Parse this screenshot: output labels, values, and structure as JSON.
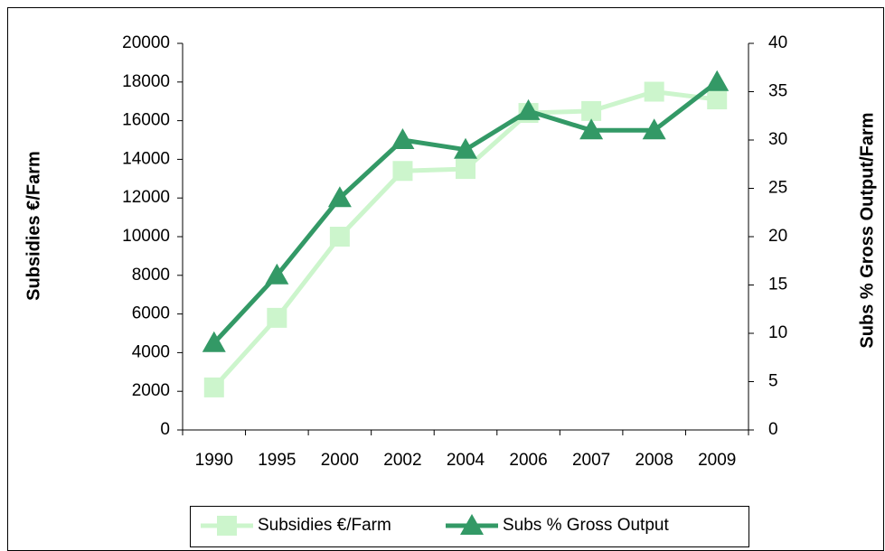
{
  "chart_data": {
    "type": "line",
    "categories": [
      "1990",
      "1995",
      "2000",
      "2002",
      "2004",
      "2006",
      "2007",
      "2008",
      "2009"
    ],
    "series": [
      {
        "name": "Subsidies €/Farm",
        "color": "#ccf5cc",
        "marker": "square",
        "values": [
          2200,
          5800,
          10000,
          13400,
          13500,
          16400,
          16500,
          17500,
          17100
        ]
      },
      {
        "name": "Subs % Gross Output",
        "color": "#339966",
        "marker": "triangle",
        "axis": "y2",
        "values": [
          9,
          16,
          24,
          30,
          29,
          33,
          31,
          31,
          36
        ]
      }
    ],
    "ylabel": "Subsidies €/Farm",
    "y2label": "Subs % Gross Output/Farm",
    "ylim": [
      0,
      20000
    ],
    "yticks": [
      0,
      2000,
      4000,
      6000,
      8000,
      10000,
      12000,
      14000,
      16000,
      18000,
      20000
    ],
    "y2lim": [
      0,
      40
    ],
    "y2ticks": [
      0,
      5,
      10,
      15,
      20,
      25,
      30,
      35,
      40
    ],
    "grid": false,
    "legend": "bottom"
  }
}
